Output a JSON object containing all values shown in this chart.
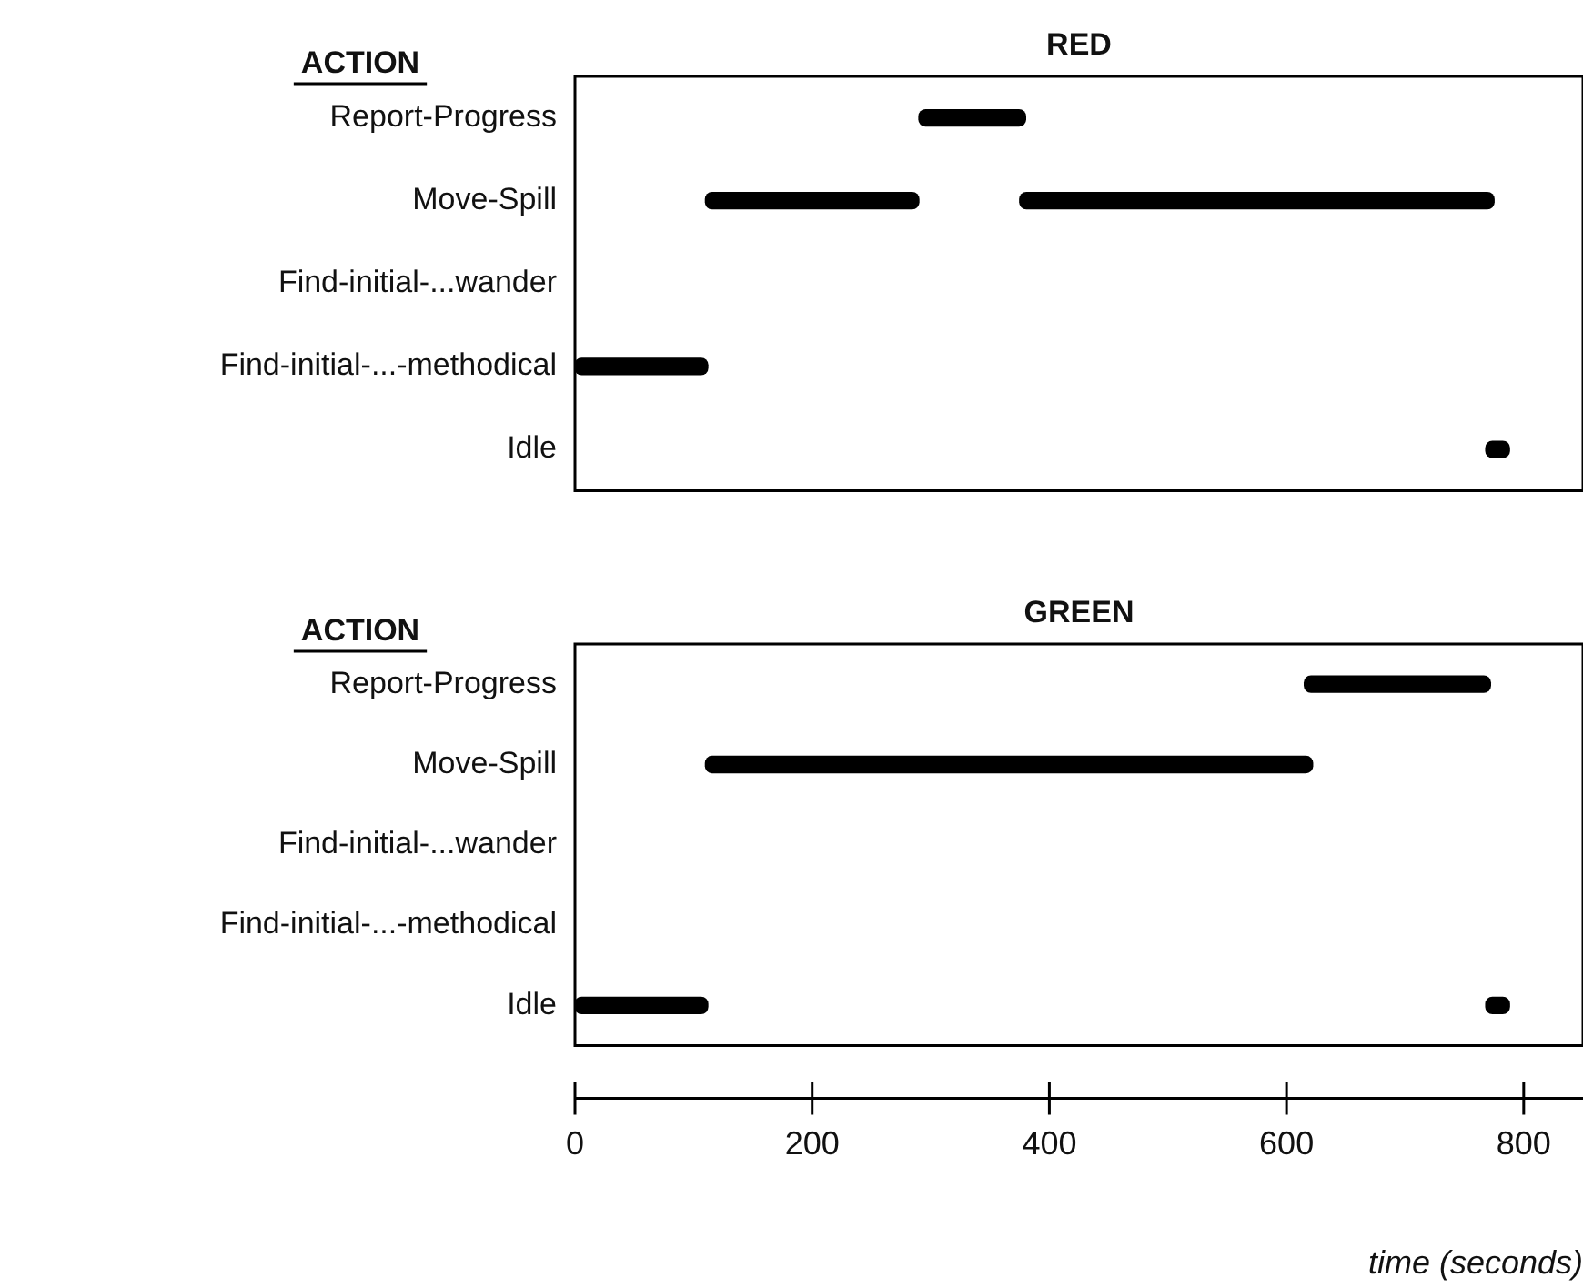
{
  "chart_data": [
    {
      "type": "bar",
      "orientation": "horizontal",
      "title": "RED",
      "ylabel": "ACTION",
      "categories": [
        "Report-Progress",
        "Move-Spill",
        "Find-initial-...wander",
        "Find-initial-...-methodical",
        "Idle"
      ],
      "series": [
        {
          "color": "#000000",
          "base": [
            290,
            110,
            null,
            0,
            768
          ],
          "values": [
            90,
            180,
            null,
            112,
            20
          ]
        },
        {
          "color": "#000000",
          "base": [
            null,
            375,
            null,
            null,
            null
          ],
          "values": [
            null,
            400,
            null,
            null,
            null
          ]
        }
      ],
      "xlim": [
        0,
        850
      ],
      "xticks": [
        0,
        200,
        400,
        600,
        800
      ],
      "tick_labels": "y",
      "grid": false,
      "legend": false
    },
    {
      "type": "bar",
      "orientation": "horizontal",
      "title": "GREEN",
      "ylabel": "ACTION",
      "xlabel": "time (seconds)",
      "categories": [
        "Report-Progress",
        "Move-Spill",
        "Find-initial-...wander",
        "Find-initial-...-methodical",
        "Idle"
      ],
      "series": [
        {
          "color": "#000000",
          "base": [
            615,
            110,
            null,
            null,
            0
          ],
          "values": [
            157,
            512,
            null,
            null,
            112
          ]
        },
        {
          "color": "#000000",
          "base": [
            null,
            null,
            null,
            null,
            768
          ],
          "values": [
            null,
            null,
            null,
            null,
            20
          ]
        }
      ],
      "xlim": [
        0,
        850
      ],
      "xticks": [
        0,
        200,
        400,
        600,
        800
      ],
      "grid": false,
      "legend": false
    }
  ]
}
